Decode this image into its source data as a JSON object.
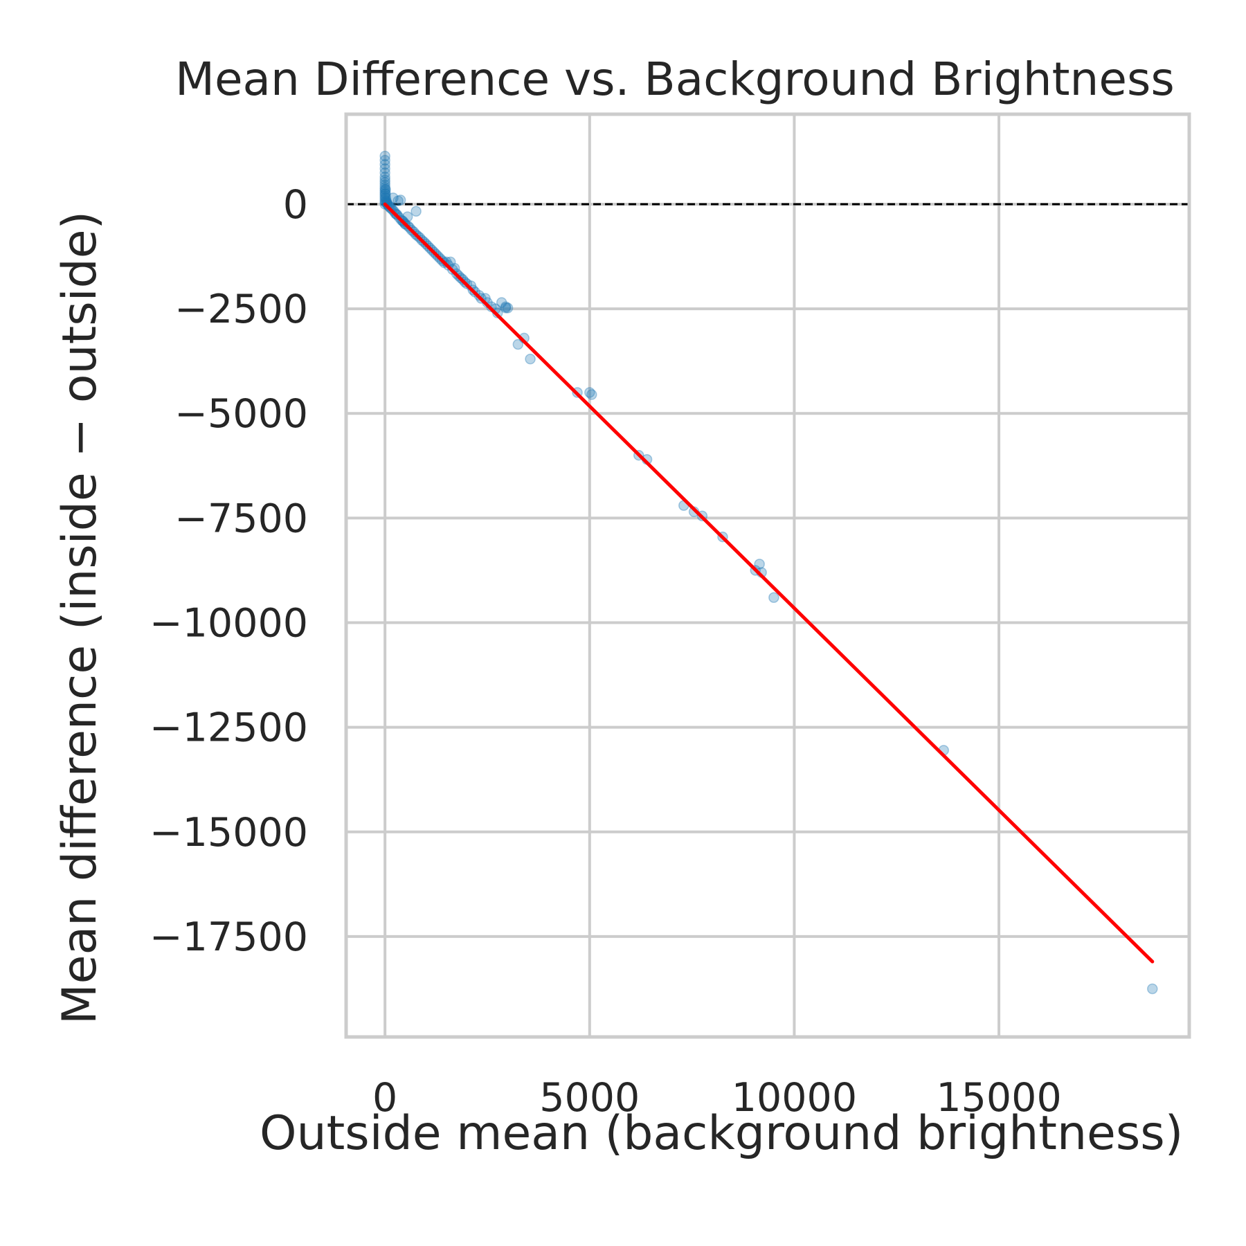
{
  "chart_data": {
    "type": "scatter",
    "title": "Mean Difference vs. Background Brightness",
    "xlabel": "Outside mean (background brightness)",
    "ylabel": "Mean difference (inside − outside)",
    "xlim": [
      -950,
      19650
    ],
    "ylim": [
      -19900,
      2150
    ],
    "xticks": [
      0,
      5000,
      10000,
      15000
    ],
    "xtick_labels": [
      "0",
      "5000",
      "10000",
      "15000"
    ],
    "yticks": [
      0,
      -2500,
      -5000,
      -7500,
      -10000,
      -12500,
      -15000,
      -17500
    ],
    "ytick_labels": [
      "0",
      "−2500",
      "−5000",
      "−7500",
      "−10000",
      "−12500",
      "−15000",
      "−17500"
    ],
    "grid": true,
    "reference_line": {
      "y": 0,
      "style": "dashed",
      "color": "#000000"
    },
    "fit_line": {
      "x": [
        0,
        18750
      ],
      "y": [
        0,
        -18100
      ],
      "color": "#ff0000"
    },
    "series": [
      {
        "color": "#1f77b4",
        "opacity": 0.3,
        "points": [
          [
            0,
            1150
          ],
          [
            0,
            1050
          ],
          [
            0,
            950
          ],
          [
            0,
            850
          ],
          [
            0,
            750
          ],
          [
            0,
            650
          ],
          [
            0,
            580
          ],
          [
            0,
            520
          ],
          [
            0,
            460
          ],
          [
            0,
            400
          ],
          [
            0,
            350
          ],
          [
            0,
            300
          ],
          [
            0,
            250
          ],
          [
            0,
            200
          ],
          [
            0,
            150
          ],
          [
            0,
            100
          ],
          [
            0,
            50
          ],
          [
            0,
            0
          ],
          [
            15,
            350
          ],
          [
            15,
            250
          ],
          [
            20,
            150
          ],
          [
            30,
            80
          ],
          [
            40,
            50
          ],
          [
            50,
            20
          ],
          [
            60,
            0
          ],
          [
            80,
            -30
          ],
          [
            100,
            -50
          ],
          [
            120,
            -80
          ],
          [
            150,
            -100
          ],
          [
            180,
            -130
          ],
          [
            200,
            150
          ],
          [
            220,
            -170
          ],
          [
            250,
            -220
          ],
          [
            280,
            -240
          ],
          [
            300,
            -260
          ],
          [
            320,
            80
          ],
          [
            350,
            -320
          ],
          [
            380,
            100
          ],
          [
            400,
            -380
          ],
          [
            430,
            -400
          ],
          [
            450,
            -420
          ],
          [
            480,
            -460
          ],
          [
            500,
            -480
          ],
          [
            550,
            -300
          ],
          [
            560,
            -520
          ],
          [
            600,
            -560
          ],
          [
            650,
            -620
          ],
          [
            700,
            -660
          ],
          [
            760,
            -170
          ],
          [
            750,
            -720
          ],
          [
            800,
            -760
          ],
          [
            850,
            -800
          ],
          [
            900,
            -860
          ],
          [
            950,
            -900
          ],
          [
            1000,
            -950
          ],
          [
            1050,
            -1000
          ],
          [
            1100,
            -1050
          ],
          [
            1150,
            -1100
          ],
          [
            1200,
            -1150
          ],
          [
            1250,
            -1200
          ],
          [
            1300,
            -1250
          ],
          [
            1350,
            -1300
          ],
          [
            1400,
            -1350
          ],
          [
            1450,
            -1400
          ],
          [
            1500,
            -1380
          ],
          [
            1550,
            -1460
          ],
          [
            1600,
            -1380
          ],
          [
            1650,
            -1560
          ],
          [
            1700,
            -1530
          ],
          [
            1750,
            -1660
          ],
          [
            1800,
            -1710
          ],
          [
            1850,
            -1760
          ],
          [
            1900,
            -1800
          ],
          [
            1950,
            -1860
          ],
          [
            2000,
            -1900
          ],
          [
            2100,
            -1950
          ],
          [
            2150,
            -2050
          ],
          [
            2200,
            -2100
          ],
          [
            2300,
            -2180
          ],
          [
            2350,
            -2250
          ],
          [
            2450,
            -2250
          ],
          [
            2500,
            -2350
          ],
          [
            2600,
            -2450
          ],
          [
            2700,
            -2500
          ],
          [
            2750,
            -2600
          ],
          [
            2850,
            -2350
          ],
          [
            2950,
            -2450
          ],
          [
            2950,
            -2480
          ],
          [
            3000,
            -2480
          ],
          [
            3250,
            -3350
          ],
          [
            3400,
            -3200
          ],
          [
            3550,
            -3700
          ],
          [
            4700,
            -4500
          ],
          [
            5000,
            -4500
          ],
          [
            5050,
            -4550
          ],
          [
            6200,
            -6000
          ],
          [
            6400,
            -6100
          ],
          [
            7300,
            -7200
          ],
          [
            7550,
            -7350
          ],
          [
            7750,
            -7450
          ],
          [
            8250,
            -7950
          ],
          [
            9050,
            -8750
          ],
          [
            9150,
            -8600
          ],
          [
            9200,
            -8800
          ],
          [
            9500,
            -9400
          ],
          [
            13650,
            -13050
          ],
          [
            18750,
            -18750
          ]
        ]
      }
    ]
  }
}
